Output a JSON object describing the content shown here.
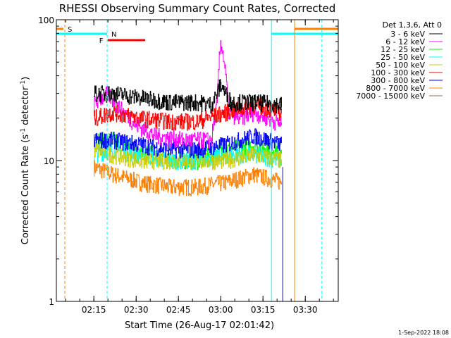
{
  "chart_data": {
    "type": "line",
    "title": "RHESSI Observing Summary Count Rates, Corrected",
    "xlabel": "Start Time (26-Aug-17 02:01:42)",
    "ylabel": "Corrected Count Rate (s-1 detector-1)",
    "ylabel_parts": {
      "main": "Corrected Count Rate (s",
      "sup1": "-1",
      "mid": " detector",
      "sup2": "-1",
      "end": ")"
    },
    "y_scale": "log",
    "ylim": [
      1,
      100
    ],
    "xlim_minutes": [
      0,
      100
    ],
    "x_tick_labels": [
      "02:15",
      "02:30",
      "02:45",
      "03:00",
      "03:15",
      "03:30"
    ],
    "x_tick_minutes": [
      13.3,
      28.3,
      43.3,
      58.3,
      73.3,
      88.3
    ],
    "y_tick_labels": [
      "1",
      "10",
      "100"
    ],
    "y_tick_values": [
      1,
      10,
      100
    ],
    "legend_header": "Det 1,3,6, Att 0",
    "legend_position": "top-right outside",
    "series": [
      {
        "name": "3 - 6 keV",
        "color": "#000000",
        "x": [
          13.3,
          20,
          30,
          40,
          50,
          55,
          57,
          58.3,
          60,
          62,
          70,
          80
        ],
        "y": [
          30,
          30,
          28,
          26,
          26,
          25,
          30,
          35,
          30,
          26,
          26,
          25
        ]
      },
      {
        "name": "6 - 12 keV",
        "color": "#ff00ff",
        "x": [
          13.3,
          18,
          22,
          28,
          35,
          45,
          55,
          57,
          58.3,
          59.5,
          61,
          65,
          70,
          80
        ],
        "y": [
          25,
          30,
          24,
          18,
          15,
          14,
          14,
          25,
          70,
          50,
          22,
          20,
          22,
          18
        ]
      },
      {
        "name": "12 - 25 keV",
        "color": "#00ff00",
        "x": [
          13.3,
          20,
          30,
          40,
          50,
          60,
          70,
          80
        ],
        "y": [
          14,
          14,
          12,
          10,
          10,
          12,
          13,
          12
        ]
      },
      {
        "name": "25 - 50 keV",
        "color": "#00ffff",
        "x": [
          13.3,
          20,
          30,
          40,
          50,
          60,
          70,
          80
        ],
        "y": [
          11,
          12,
          11,
          10,
          10,
          11,
          11,
          10
        ]
      },
      {
        "name": "50 - 100 keV",
        "color": "#cccc00",
        "x": [
          13.3,
          20,
          30,
          40,
          50,
          60,
          70,
          80
        ],
        "y": [
          12,
          11,
          10,
          10,
          10,
          10,
          11,
          10
        ]
      },
      {
        "name": "100 - 300 keV",
        "color": "#ff0000",
        "x": [
          13.3,
          20,
          30,
          40,
          50,
          60,
          70,
          80
        ],
        "y": [
          20,
          22,
          20,
          19,
          19,
          22,
          25,
          22
        ]
      },
      {
        "name": "300 - 800 keV",
        "color": "#0000ff",
        "x": [
          13.3,
          20,
          30,
          40,
          50,
          60,
          70,
          80
        ],
        "y": [
          14,
          14,
          13,
          12,
          12,
          13,
          15,
          13
        ]
      },
      {
        "name": "800 - 7000 keV",
        "color": "#ff8000",
        "x": [
          13.3,
          20,
          30,
          40,
          50,
          60,
          70,
          80
        ],
        "y": [
          9,
          8,
          7,
          6.5,
          6.5,
          7,
          8,
          7
        ]
      },
      {
        "name": "7000 - 15000 keV",
        "color": "#996633",
        "x": [],
        "y": []
      }
    ],
    "flags": [
      {
        "label": "S",
        "color": "#ff8000",
        "kind": "saa"
      },
      {
        "label": "N",
        "color": "#00ffff",
        "kind": "night"
      },
      {
        "label": "F",
        "color": "#ff0000",
        "kind": "flare"
      }
    ],
    "footer": "1-Sep-2022 18:08"
  }
}
